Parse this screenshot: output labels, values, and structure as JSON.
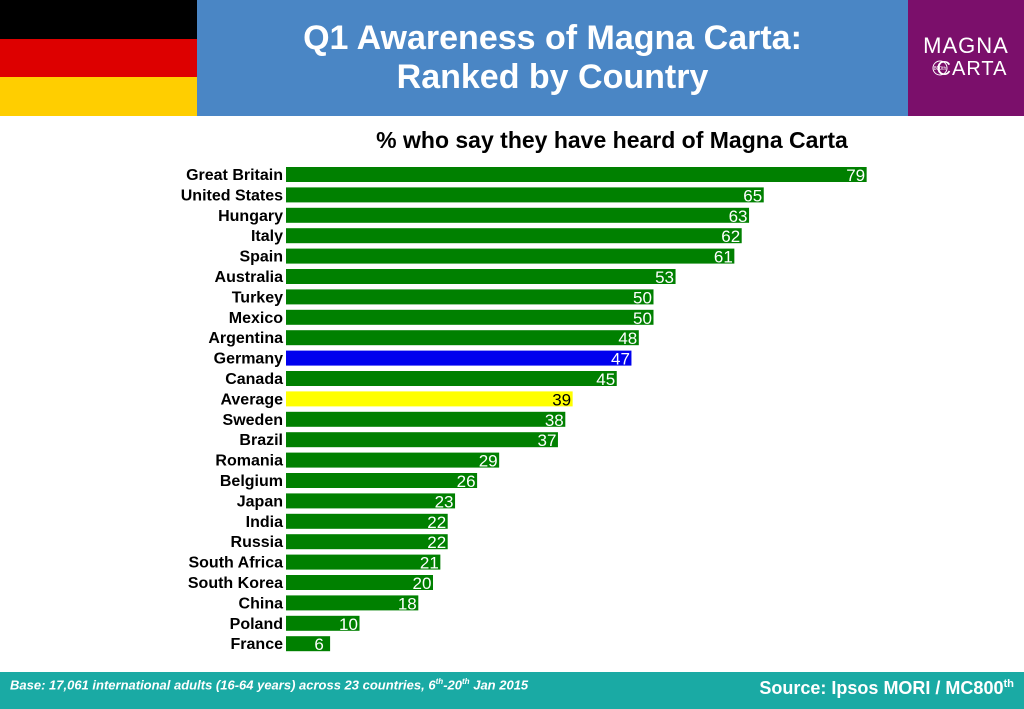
{
  "header": {
    "title_line1": "Q1 Awareness of Magna Carta:",
    "title_line2": "Ranked by Country",
    "flag_colors": [
      "#000000",
      "#dd0000",
      "#ffce00"
    ],
    "logo": {
      "line1": "MAGNA",
      "line2": "CARTA",
      "mark": "800th"
    }
  },
  "colors": {
    "bar_default": "#008000",
    "bar_highlight": "#0000ee",
    "bar_average": "#ffff00",
    "label_default": "#ffffff",
    "label_average": "#000000"
  },
  "chart_data": {
    "type": "bar",
    "orientation": "horizontal",
    "title": "% who say they have heard of Magna Carta",
    "xlim": [
      0,
      80
    ],
    "grid": false,
    "categories": [
      "Great Britain",
      "United States",
      "Hungary",
      "Italy",
      "Spain",
      "Australia",
      "Turkey",
      "Mexico",
      "Argentina",
      "Germany",
      "Canada",
      "Average",
      "Sweden",
      "Brazil",
      "Romania",
      "Belgium",
      "Japan",
      "India",
      "Russia",
      "South Africa",
      "South Korea",
      "China",
      "Poland",
      "France"
    ],
    "values": [
      79,
      65,
      63,
      62,
      61,
      53,
      50,
      50,
      48,
      47,
      45,
      39,
      38,
      37,
      29,
      26,
      23,
      22,
      22,
      21,
      20,
      18,
      10,
      6
    ],
    "highlight": {
      "Germany": "highlight",
      "Average": "average"
    }
  },
  "footer": {
    "base_prefix": "Base: 17,061 international adults (16-64 years) across 23 countries, 6",
    "base_sup1": "th",
    "base_mid": "-20",
    "base_sup2": "th",
    "base_suffix": " Jan 2015",
    "source_text": "Source: Ipsos MORI / MC800",
    "source_sup": "th"
  }
}
